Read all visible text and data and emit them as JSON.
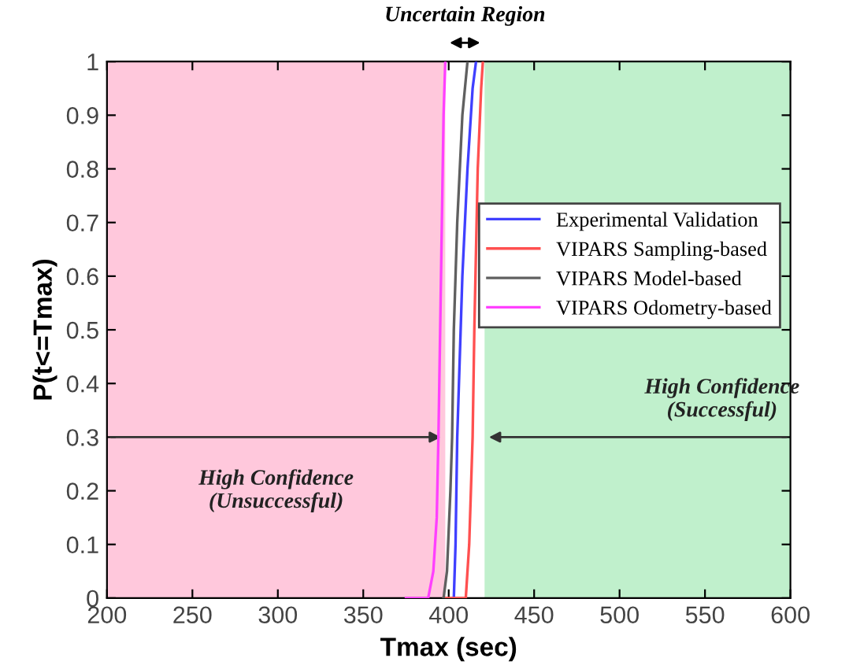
{
  "chart_data": {
    "type": "line",
    "xlabel": "Tmax (sec)",
    "ylabel": "P(t<=Tmax)",
    "xlim": [
      200,
      600
    ],
    "xticks": [
      200,
      250,
      300,
      350,
      400,
      450,
      500,
      550,
      600
    ],
    "ylim": [
      0,
      1
    ],
    "yticks": [
      0,
      0.1,
      0.2,
      0.3,
      0.4,
      0.5,
      0.6,
      0.7,
      0.8,
      0.9,
      1
    ],
    "grid": false,
    "legend": "right",
    "line_style": "solid",
    "marker": "none",
    "series": [
      {
        "name": "Experimental Validation",
        "color": "#4040ff",
        "x": [
          403,
          404,
          405,
          406,
          408,
          411,
          414,
          416
        ],
        "values": [
          0,
          0.1,
          0.3,
          0.4,
          0.6,
          0.8,
          0.95,
          1
        ]
      },
      {
        "name": "VIPARS Sampling-based",
        "color": "#ff5050",
        "x": [
          397,
          410,
          412,
          413,
          414,
          415,
          417,
          419,
          420
        ],
        "values": [
          0,
          0,
          0.1,
          0.2,
          0.3,
          0.5,
          0.8,
          0.95,
          1
        ]
      },
      {
        "name": "VIPARS Model-based",
        "color": "#606060",
        "x": [
          397,
          399,
          401,
          402,
          403,
          405,
          408,
          411
        ],
        "values": [
          0,
          0.05,
          0.2,
          0.3,
          0.5,
          0.7,
          0.9,
          1
        ]
      },
      {
        "name": "VIPARS Odometry-based",
        "color": "#ff40ff",
        "x": [
          375,
          388,
          391,
          393,
          394,
          395,
          396,
          397,
          398
        ],
        "values": [
          0,
          0,
          0.05,
          0.15,
          0.3,
          0.5,
          0.7,
          0.9,
          1
        ]
      }
    ],
    "bands": [
      {
        "axis": "x",
        "from": 200,
        "to": 398,
        "label": "High Confidence\n(Unsuccessful)",
        "color": "#ffc8dc"
      },
      {
        "axis": "x",
        "from": 421,
        "to": 600,
        "label": "High Confidence\n(Successful)",
        "color": "#c0f0cc"
      }
    ],
    "annotations": [
      "Uncertain Region"
    ]
  }
}
